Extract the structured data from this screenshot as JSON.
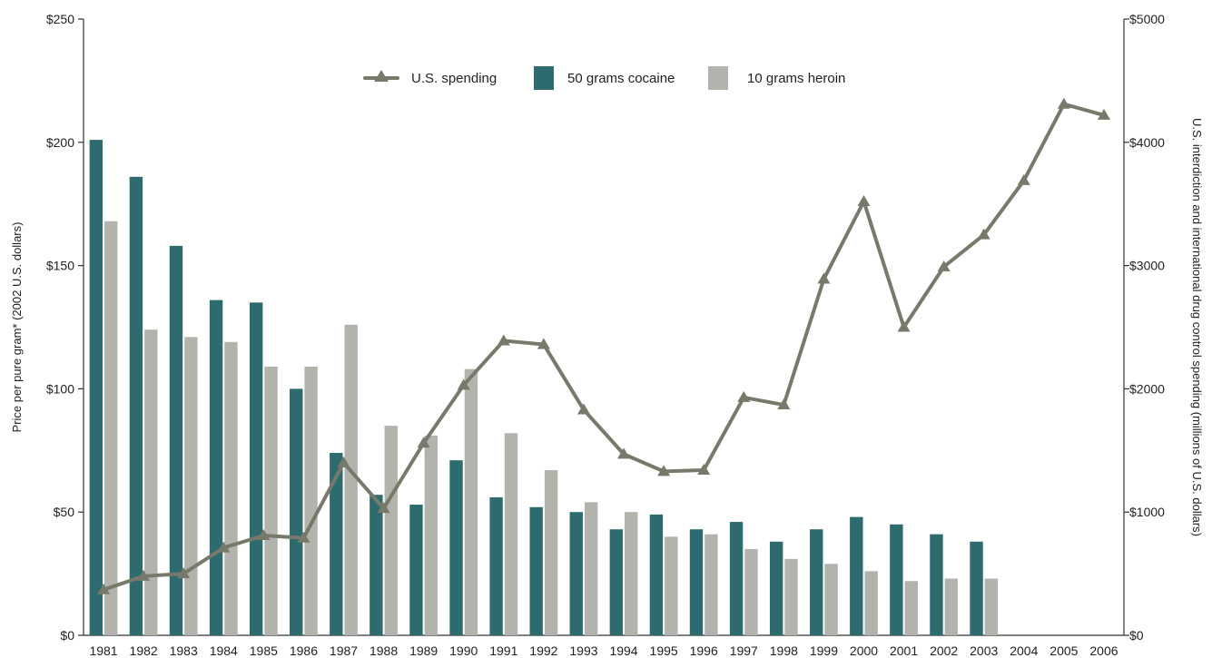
{
  "chart_data": {
    "type": "bar",
    "categories": [
      "1981",
      "1982",
      "1983",
      "1984",
      "1985",
      "1986",
      "1987",
      "1988",
      "1989",
      "1990",
      "1991",
      "1992",
      "1993",
      "1994",
      "1995",
      "1996",
      "1997",
      "1998",
      "1999",
      "2000",
      "2001",
      "2002",
      "2003",
      "2004",
      "2005",
      "2006"
    ],
    "ylabel_left": "Price per pure gram* (2002 U.S. dollars)",
    "ylabel_right": "U.S. interdiction and international drug control spending (millions of U.S. dollars)",
    "left_axis": {
      "ylim": [
        0,
        250
      ],
      "ticks": [
        0,
        50,
        100,
        150,
        200,
        250
      ],
      "tick_labels": [
        "$0",
        "$50",
        "$100",
        "$150",
        "$200",
        "$250"
      ]
    },
    "right_axis": {
      "ylim": [
        0,
        5000
      ],
      "ticks": [
        0,
        1000,
        2000,
        3000,
        4000,
        5000
      ],
      "tick_labels": [
        "$0",
        "$1000",
        "$2000",
        "$3000",
        "$4000",
        "$5000"
      ]
    },
    "grid": false,
    "legend_position": "top-center",
    "series": [
      {
        "name": "50 grams cocaine",
        "type": "bar",
        "axis": "left",
        "color": "#2e6b6f",
        "values": [
          201,
          186,
          158,
          136,
          135,
          100,
          74,
          57,
          53,
          71,
          56,
          52,
          50,
          43,
          49,
          43,
          46,
          38,
          43,
          48,
          45,
          41,
          38,
          null,
          null,
          null
        ]
      },
      {
        "name": "10 grams heroin",
        "type": "bar",
        "axis": "left",
        "color": "#b2b3ac",
        "values": [
          168,
          124,
          121,
          119,
          109,
          109,
          126,
          85,
          81,
          108,
          82,
          67,
          54,
          50,
          40,
          41,
          35,
          31,
          29,
          26,
          22,
          23,
          23,
          null,
          null,
          null
        ]
      },
      {
        "name": "U.S. spending",
        "type": "line",
        "axis": "right",
        "color": "#777a6a",
        "values": [
          370,
          480,
          500,
          710,
          810,
          790,
          1400,
          1030,
          1560,
          2030,
          2390,
          2360,
          1830,
          1470,
          1330,
          1340,
          1930,
          1870,
          2890,
          3520,
          2500,
          2990,
          3250,
          3690,
          4310,
          4220
        ]
      }
    ]
  }
}
